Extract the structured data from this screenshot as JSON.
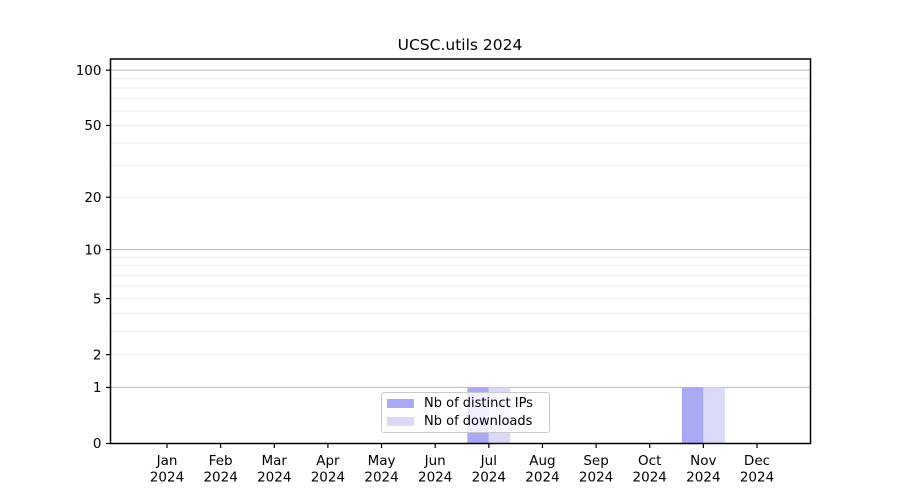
{
  "title": "UCSC.utils 2024",
  "chart_data": {
    "type": "bar",
    "title": "UCSC.utils 2024",
    "categories": [
      "Jan",
      "Feb",
      "Mar",
      "Apr",
      "May",
      "Jun",
      "Jul",
      "Aug",
      "Sep",
      "Oct",
      "Nov",
      "Dec"
    ],
    "year_label": "2024",
    "series": [
      {
        "name": "Nb of distinct IPs",
        "color": "#a9a9f3",
        "values": [
          0,
          0,
          0,
          0,
          0,
          0,
          1,
          0,
          0,
          0,
          1,
          0
        ]
      },
      {
        "name": "Nb of downloads",
        "color": "#dadaf8",
        "values": [
          0,
          0,
          0,
          0,
          0,
          0,
          1,
          0,
          0,
          0,
          1,
          0
        ]
      }
    ],
    "yscale": "log1p",
    "ylim": [
      0,
      115
    ],
    "yticks": [
      0,
      1,
      2,
      5,
      10,
      20,
      50,
      100
    ],
    "grid": {
      "major_values": [
        1,
        10,
        100
      ],
      "minor_values": [
        2,
        3,
        4,
        5,
        6,
        7,
        8,
        9,
        20,
        30,
        40,
        50,
        60,
        70,
        80,
        90
      ]
    },
    "legend": {
      "position": "lower-center",
      "labels": [
        "Nb of distinct IPs",
        "Nb of downloads"
      ]
    },
    "xlabel": "",
    "ylabel": ""
  },
  "colors": {
    "axis": "#000000",
    "grid_major": "#bdbdbd",
    "grid_minor": "#ececec",
    "background": "#ffffff",
    "legend_border": "#c9c9c9",
    "text": "#000000"
  }
}
